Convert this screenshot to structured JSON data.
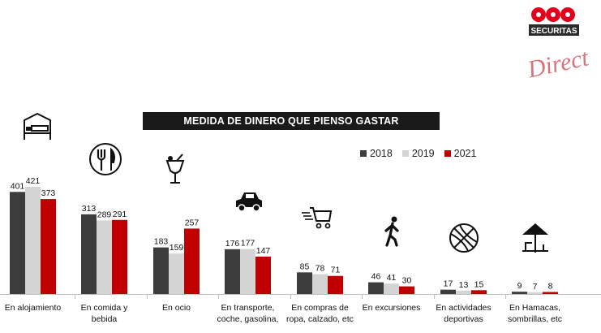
{
  "brand": {
    "name": "SECURITAS",
    "script": "Direct",
    "colors": {
      "red": "#e2001a",
      "dark": "#2b2b2b",
      "script": "#d9737b"
    }
  },
  "chart_data": {
    "type": "bar",
    "title": "MEDIDA DE DINERO QUE PIENSO GASTAR",
    "categories": [
      [
        "En alojamiento"
      ],
      [
        "En comida y",
        "bebida"
      ],
      [
        "En ocio"
      ],
      [
        "En transporte,",
        "coche, gasolina,"
      ],
      [
        "En compras de",
        "ropa, calzado, etc"
      ],
      [
        "En excursiones"
      ],
      [
        "En actividades",
        "deportivas"
      ],
      [
        "En Hamacas,",
        "sombrillas, etc"
      ]
    ],
    "series": [
      {
        "name": "2018",
        "color": "#3c3c3c",
        "values": [
          401,
          313,
          183,
          176,
          85,
          46,
          17,
          9
        ]
      },
      {
        "name": "2019",
        "color": "#d4d4d4",
        "values": [
          421,
          289,
          159,
          177,
          78,
          41,
          13,
          7
        ]
      },
      {
        "name": "2021",
        "color": "#c00000",
        "values": [
          373,
          291,
          257,
          147,
          71,
          30,
          15,
          8
        ]
      }
    ],
    "icons": [
      "bed-icon",
      "fork-knife-icon",
      "cocktail-icon",
      "car-icon",
      "shopping-cart-icon",
      "walking-person-icon",
      "ball-icon",
      "beach-umbrella-icon"
    ],
    "legend_position": "top-right",
    "grid": false
  }
}
